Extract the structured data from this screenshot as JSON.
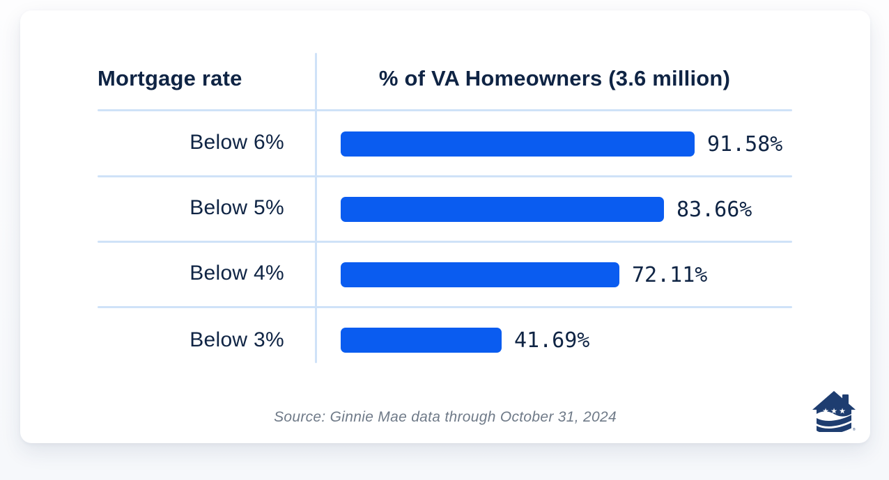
{
  "header": {
    "col1": "Mortgage rate",
    "col2": "% of VA Homeowners (3.6 million)"
  },
  "source_note": "Source: Ginnie Mae data through October 31, 2024",
  "logo": {
    "description": "house-with-stars-and-stripes",
    "registered_mark": "®"
  },
  "colors": {
    "bar": "#0a5cf0",
    "navy_text": "#0f2444",
    "grid_line": "#cfe2f8",
    "logo_navy": "#1e3d70",
    "source_text": "#6f7a88",
    "card_background": "#ffffff"
  },
  "chart_data": {
    "type": "bar",
    "orientation": "horizontal",
    "title": "% of VA Homeowners (3.6 million)",
    "xlabel": "Mortgage rate",
    "categories": [
      "Below 6%",
      "Below 5%",
      "Below 4%",
      "Below 3%"
    ],
    "values": [
      91.58,
      83.66,
      72.11,
      41.69
    ],
    "value_labels": [
      "91.58%",
      "83.66%",
      "72.11%",
      "41.69%"
    ],
    "xlim": [
      0,
      100
    ],
    "grid": "horizontal row separators and single column divider, light blue",
    "legend": "none",
    "source": "Source: Ginnie Mae data through October 31, 2024"
  }
}
